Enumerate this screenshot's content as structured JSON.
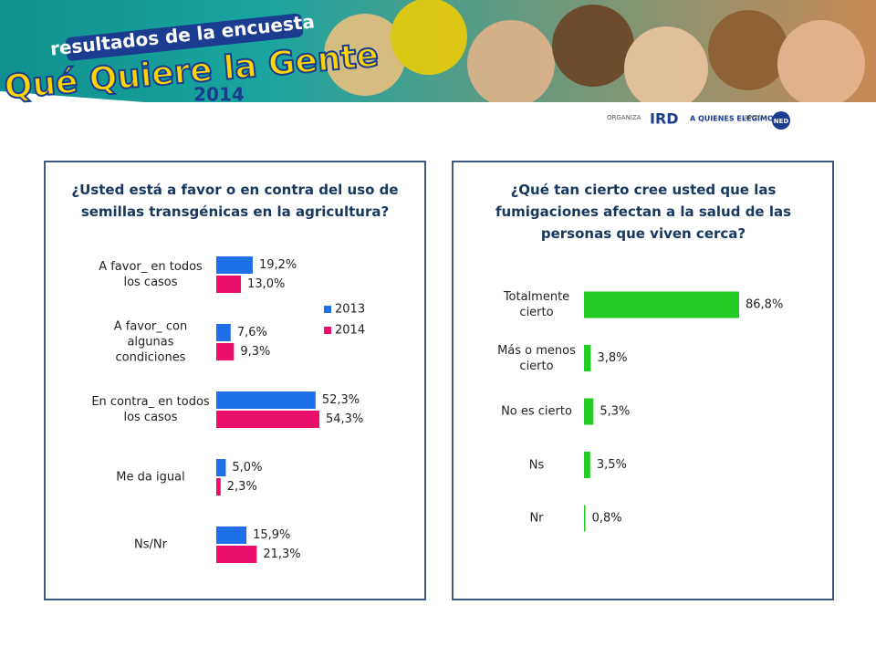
{
  "header": {
    "tagline": "resultados de la encuesta",
    "title": "Qué Quiere la Gente",
    "year": "2014",
    "organiza": "ORGANIZA",
    "org1": "IRD",
    "org2": "A QUIENES ELEGIMOS",
    "apoya": "APOYA",
    "sponsor": "NED"
  },
  "chart_data": [
    {
      "type": "hbar",
      "title": "¿Usted está a favor o en contra del uso de semillas transgénicas en la agricultura?",
      "categories": [
        "A favor_ en todos los casos",
        "A favor_ con algunas condiciones",
        "En contra_ en todos los casos",
        "Me da igual",
        "Ns/Nr"
      ],
      "series": [
        {
          "name": "2013",
          "color": "#1f6fe8",
          "values": [
            19.2,
            7.6,
            52.3,
            5.0,
            15.9
          ],
          "value_labels": [
            "19,2%",
            "7,6%",
            "52,3%",
            "5,0%",
            "15,9%"
          ]
        },
        {
          "name": "2014",
          "color": "#e8106b",
          "values": [
            13.0,
            9.3,
            54.3,
            2.3,
            21.3
          ],
          "value_labels": [
            "13,0%",
            "9,3%",
            "54,3%",
            "2,3%",
            "21,3%"
          ]
        }
      ]
    },
    {
      "type": "hbar",
      "title": "¿Qué tan cierto cree usted que las fumigaciones afectan a la salud de las personas que viven cerca?",
      "categories": [
        "Totalmente cierto",
        "Más o menos cierto",
        "No es cierto",
        "Ns",
        "Nr"
      ],
      "series": [
        {
          "color": "#22cc22",
          "values": [
            86.8,
            3.8,
            5.3,
            3.5,
            0.8
          ],
          "value_labels": [
            "86,8%",
            "3,8%",
            "5,3%",
            "3,5%",
            "0,8%"
          ]
        }
      ]
    }
  ]
}
